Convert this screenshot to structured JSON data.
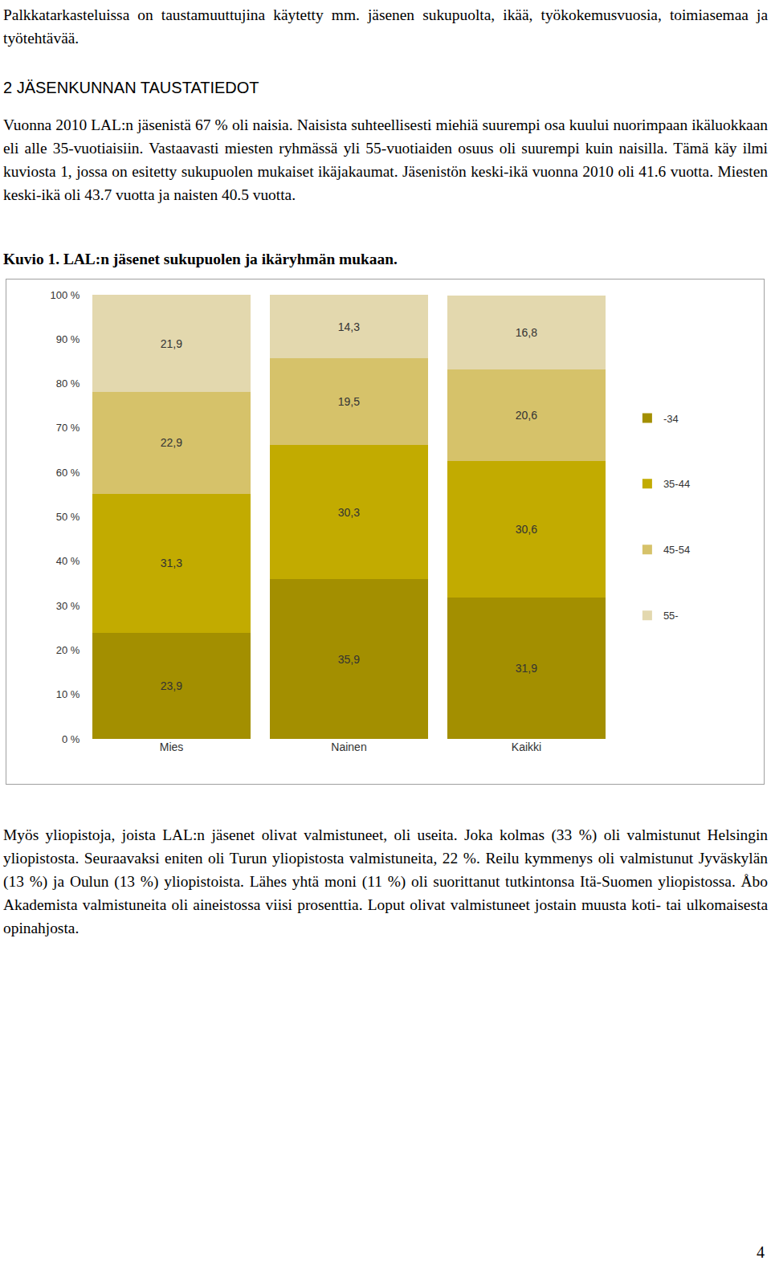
{
  "document": {
    "intro": "Palkkatarkasteluissa on taustamuuttujina käytetty mm. jäsenen sukupuolta, ikää, työkokemusvuosia, toimiasemaa ja työtehtävää.",
    "heading": "2 JÄSENKUNNAN TAUSTATIEDOT",
    "paragraph1": "Vuonna 2010 LAL:n jäsenistä 67 % oli naisia. Naisista suhteellisesti miehiä suurempi osa kuului nuorimpaan ikäluokkaan eli alle 35-vuotiaisiin. Vastaavasti miesten ryhmässä yli 55-vuotiaiden osuus oli suurempi kuin naisilla. Tämä käy ilmi kuviosta 1, jossa on esitetty sukupuolen mukaiset ikäjakaumat. Jäsenistön keski-ikä vuonna 2010 oli 41.6 vuotta. Miesten keski-ikä oli 43.7 vuotta ja naisten 40.5 vuotta.",
    "figure_caption": "Kuvio 1. LAL:n jäsenet sukupuolen ja ikäryhmän mukaan.",
    "paragraph2": "Myös yliopistoja, joista LAL:n jäsenet olivat valmistuneet, oli useita. Joka kolmas (33 %) oli valmistunut Helsingin yliopistosta. Seuraavaksi eniten oli Turun yliopistosta valmistuneita, 22 %. Reilu kymmenys oli valmistunut Jyväskylän (13 %) ja Oulun (13 %) yliopistoista. Lähes yhtä moni (11 %) oli suorittanut tutkintonsa Itä-Suomen yliopistossa. Åbo Akademista valmistuneita oli aineistossa viisi prosenttia. Loput olivat valmistuneet jostain muusta koti- tai ulkomaisesta opinahjosta.",
    "page_number": "4"
  },
  "chart_data": {
    "type": "bar",
    "stacked": true,
    "data_labels": true,
    "grid": false,
    "legend": "right",
    "categories": [
      "Mies",
      "Nainen",
      "Kaikki"
    ],
    "ylim": [
      0,
      100
    ],
    "yticks": [
      {
        "value": 0,
        "label": "0 %"
      },
      {
        "value": 10,
        "label": "10 %"
      },
      {
        "value": 20,
        "label": "20 %"
      },
      {
        "value": 30,
        "label": "30 %"
      },
      {
        "value": 40,
        "label": "40 %"
      },
      {
        "value": 50,
        "label": "50 %"
      },
      {
        "value": 60,
        "label": "60 %"
      },
      {
        "value": 70,
        "label": "70 %"
      },
      {
        "value": 80,
        "label": "80 %"
      },
      {
        "value": 90,
        "label": "90 %"
      },
      {
        "value": 100,
        "label": "100 %"
      }
    ],
    "series": [
      {
        "name": "-34",
        "color": "#a38f00",
        "values": [
          23.9,
          35.9,
          31.9
        ],
        "value_labels": [
          "23,9",
          "35,9",
          "31,9"
        ]
      },
      {
        "name": "35-44",
        "color": "#c2ab00",
        "values": [
          31.3,
          30.3,
          30.6
        ],
        "value_labels": [
          "31,3",
          "30,3",
          "30,6"
        ]
      },
      {
        "name": "45-54",
        "color": "#d6c26a",
        "values": [
          22.9,
          19.5,
          20.6
        ],
        "value_labels": [
          "22,9",
          "19,5",
          "20,6"
        ]
      },
      {
        "name": "55-",
        "color": "#e3d8ae",
        "values": [
          21.9,
          14.3,
          16.8
        ],
        "value_labels": [
          "21,9",
          "14,3",
          "16,8"
        ]
      }
    ]
  }
}
